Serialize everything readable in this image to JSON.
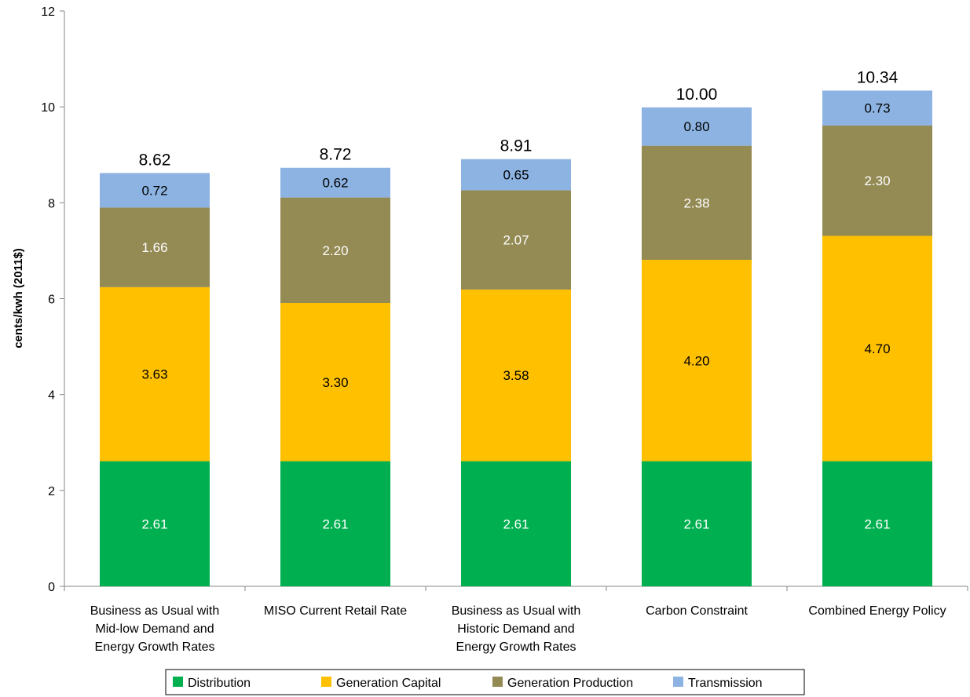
{
  "chart_data": {
    "type": "bar",
    "stacked": true,
    "ylabel": "cents/kwh (2011$)",
    "ylim": [
      0,
      12
    ],
    "yticks": [
      0,
      2,
      4,
      6,
      8,
      10,
      12
    ],
    "grid": false,
    "legend_position": "bottom",
    "categories": [
      [
        "Business as Usual with",
        "Mid-low Demand and",
        "Energy Growth Rates"
      ],
      [
        "MISO Current Retail Rate"
      ],
      [
        "Business as Usual with",
        "Historic Demand and",
        "Energy Growth Rates"
      ],
      [
        "Carbon Constraint"
      ],
      [
        "Combined Energy Policy"
      ]
    ],
    "series": [
      {
        "name": "Distribution",
        "color": "#00b050",
        "label_color": "#ffffff",
        "values": [
          2.61,
          2.61,
          2.61,
          2.61,
          2.61
        ],
        "labels": [
          "2.61",
          "2.61",
          "2.61",
          "2.61",
          "2.61"
        ]
      },
      {
        "name": "Generation Capital",
        "color": "#ffc000",
        "label_color": "#000000",
        "values": [
          3.63,
          3.3,
          3.58,
          4.2,
          4.7
        ],
        "labels": [
          "3.63",
          "3.30",
          "3.58",
          "4.20",
          "4.70"
        ]
      },
      {
        "name": "Generation Production",
        "color": "#948a54",
        "label_color": "#ffffff",
        "values": [
          1.66,
          2.2,
          2.07,
          2.38,
          2.3
        ],
        "labels": [
          "1.66",
          "2.20",
          "2.07",
          "2.38",
          "2.30"
        ]
      },
      {
        "name": "Transmission",
        "color": "#8db3e2",
        "label_color": "#000000",
        "values": [
          0.72,
          0.62,
          0.65,
          0.8,
          0.73
        ],
        "labels": [
          "0.72",
          "0.62",
          "0.65",
          "0.80",
          "0.73"
        ]
      }
    ],
    "totals": [
      "8.62",
      "8.72",
      "8.91",
      "10.00",
      "10.34"
    ]
  }
}
